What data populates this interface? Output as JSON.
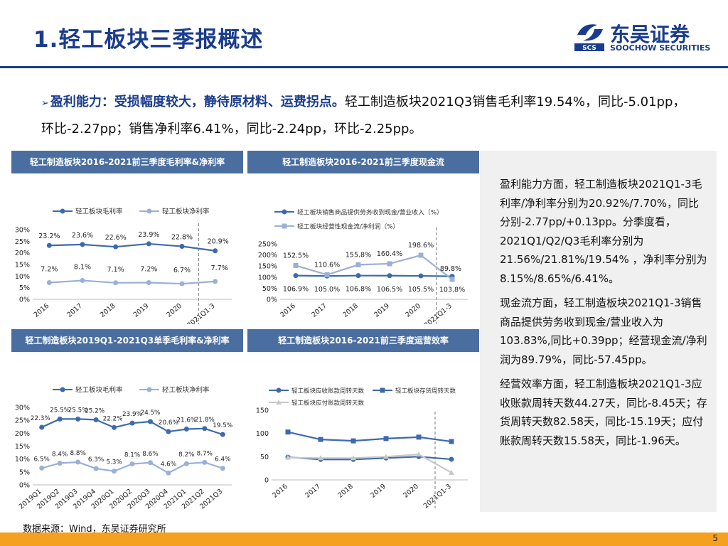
{
  "header": {
    "title": "1.轻工板块三季报概述",
    "logo_cn": "东吴证券",
    "logo_en": "SOOCHOW SECURITIES",
    "logo_abbr": "SCS"
  },
  "summary": {
    "marker": "➢",
    "bold_part": "盈利能力：受损幅度较大，静待原材料、运费拐点。",
    "normal_part": "轻工制造板块2021Q3销售毛利率19.54%，同比-5.01pp，环比-2.27pp；销售净利率6.41%，同比-2.24pp，环比-2.25pp。"
  },
  "sidebar": {
    "p1": "盈利能力方面，轻工制造板块2021Q1-3毛利率/净利率分别为20.92%/7.70%，同比分别-2.77pp/+0.13pp。分季度看，2021Q1/Q2/Q3毛利率分别为21.56%/21.81%/19.54% ，净利率分别为8.15%/8.65%/6.41%。",
    "p2": "现金流方面，轻工制造板块2021Q1-3销售商品提供劳务收到现金/营业收入为103.83%,同比+0.39pp；经营现金流/净利润为89.79%，同比-57.45pp。",
    "p3": "经营效率方面，轻工制造板块2021Q1-3应收账款周转天数44.27天，同比-8.45天；存货周转天数82.58天，同比-15.19天；应付账款周转天数15.58天，同比-1.96天。"
  },
  "footer": {
    "source": "数据来源：Wind，东吴证券研究所",
    "page": "5"
  },
  "colors": {
    "navy": "#1a3c8c",
    "header_blue": "#4a6ea0",
    "series_dark": "#3d6aad",
    "series_light": "#9bb0d6",
    "series_gray": "#c8c8c8",
    "orange": "#f5a01e"
  },
  "chart_data": [
    {
      "id": "c1",
      "type": "line",
      "title": "轻工制造板块2016-2021前三季度毛利率&净利率",
      "categories": [
        "2016",
        "2017",
        "2018",
        "2019",
        "2020",
        "2021Q1-3"
      ],
      "series": [
        {
          "name": "轻工板块毛利率",
          "values": [
            23.2,
            23.6,
            22.6,
            23.9,
            22.8,
            20.9
          ],
          "labels": [
            "23.2%",
            "23.6%",
            "22.6%",
            "23.9%",
            "22.8%",
            "20.9%"
          ]
        },
        {
          "name": "轻工板块净利率",
          "values": [
            7.2,
            8.1,
            7.1,
            7.2,
            6.7,
            7.7
          ],
          "labels": [
            "7.2%",
            "8.1%",
            "7.1%",
            "7.2%",
            "6.7%",
            "7.7%"
          ]
        }
      ],
      "ylim": [
        0,
        30
      ],
      "yticks": [
        "0%",
        "5%",
        "10%",
        "15%",
        "20%",
        "25%",
        "30%"
      ],
      "divider_after": "2020"
    },
    {
      "id": "c2",
      "type": "line",
      "title": "轻工制造板块2016-2021前三季度现金流",
      "categories": [
        "2016",
        "2017",
        "2018",
        "2019",
        "2020",
        "2021Q1-3"
      ],
      "series": [
        {
          "name": "轻工板块销售商品提供劳务收到现金/营业收入（%）",
          "values": [
            106.9,
            105.0,
            106.8,
            106.5,
            105.5,
            103.8
          ],
          "labels": [
            "106.9%",
            "105.0%",
            "106.8%",
            "106.5%",
            "105.5%",
            "103.8%"
          ]
        },
        {
          "name": "轻工板块经营性现金流/净利润（%）",
          "values": [
            152.5,
            110.6,
            155.8,
            160.4,
            198.6,
            89.8
          ],
          "labels": [
            "152.5%",
            "110.6%",
            "155.8%",
            "160.4%",
            "198.6%",
            "89.8%"
          ]
        }
      ],
      "ylim": [
        0,
        250
      ],
      "yticks": [
        "0%",
        "50%",
        "100%",
        "150%",
        "200%",
        "250%"
      ],
      "divider_after": "2020"
    },
    {
      "id": "c3",
      "type": "line",
      "title": "轻工制造板块2019Q1-2021Q3单季毛利率&净利率",
      "categories": [
        "2019Q1",
        "2019Q2",
        "2019Q3",
        "2019Q4",
        "2020Q1",
        "2020Q2",
        "2020Q3",
        "2020Q4",
        "2021Q1",
        "2021Q2",
        "2021Q3"
      ],
      "series": [
        {
          "name": "轻工板块毛利率",
          "values": [
            22.3,
            25.5,
            25.5,
            25.2,
            22.2,
            23.9,
            24.5,
            20.6,
            21.6,
            21.8,
            19.5
          ],
          "labels": [
            "22.3%",
            "25.5%",
            "25.5%",
            "25.2%",
            "22.2%",
            "23.9%",
            "24.5%",
            "20.6%",
            "21.6%",
            "21.8%",
            "19.5%"
          ]
        },
        {
          "name": "轻工板块净利率",
          "values": [
            6.5,
            8.4,
            8.8,
            6.3,
            5.3,
            8.1,
            8.6,
            4.6,
            8.2,
            8.7,
            6.4
          ],
          "labels": [
            "6.5%",
            "8.4%",
            "8.8%",
            "6.3%",
            "5.3%",
            "8.1%",
            "8.6%",
            "4.6%",
            "8.2%",
            "8.7%",
            "6.4%"
          ]
        }
      ],
      "ylim": [
        0,
        30
      ],
      "yticks": [
        "0%",
        "5%",
        "10%",
        "15%",
        "20%",
        "25%",
        "30%"
      ]
    },
    {
      "id": "c4",
      "type": "line",
      "title": "轻工制造板块2016-2021前三季度运营效率",
      "categories": [
        "2016",
        "2017",
        "2018",
        "2019",
        "2020",
        "2021Q1-3"
      ],
      "series": [
        {
          "name": "轻工板块应收账款周转天数",
          "values": [
            49,
            44,
            44,
            47,
            50,
            44.27
          ]
        },
        {
          "name": "轻工板块存货周转天数",
          "values": [
            103,
            87,
            84,
            89,
            92,
            82.58
          ]
        },
        {
          "name": "轻工板块应付账款周转天数",
          "values": [
            48,
            47,
            47,
            50,
            55,
            15.58
          ]
        }
      ],
      "ylim": [
        0,
        150
      ],
      "yticks": [
        "0",
        "50",
        "100",
        "150"
      ],
      "divider_after": "2020"
    }
  ]
}
